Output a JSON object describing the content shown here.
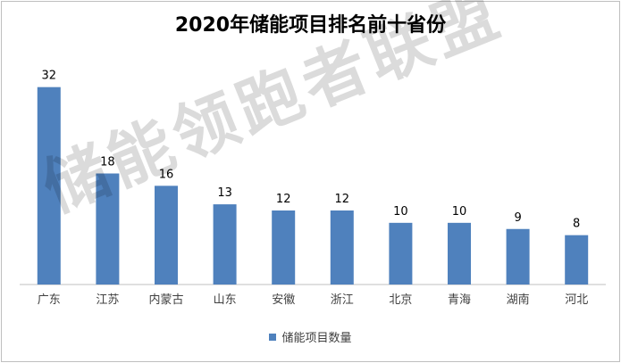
{
  "chart_data": {
    "type": "bar",
    "title": "2020年储能项目排名前十省份",
    "categories": [
      "广东",
      "江苏",
      "内蒙古",
      "山东",
      "安徽",
      "浙江",
      "北京",
      "青海",
      "湖南",
      "河北"
    ],
    "series": [
      {
        "name": "储能项目数量",
        "values": [
          32,
          18,
          16,
          13,
          12,
          12,
          10,
          10,
          9,
          8
        ],
        "color": "#4f81bd"
      }
    ],
    "ylim": [
      0,
      36
    ],
    "grid": false,
    "legend_position": "bottom",
    "data_labels": true
  },
  "watermark": "储能领跑者联盟"
}
